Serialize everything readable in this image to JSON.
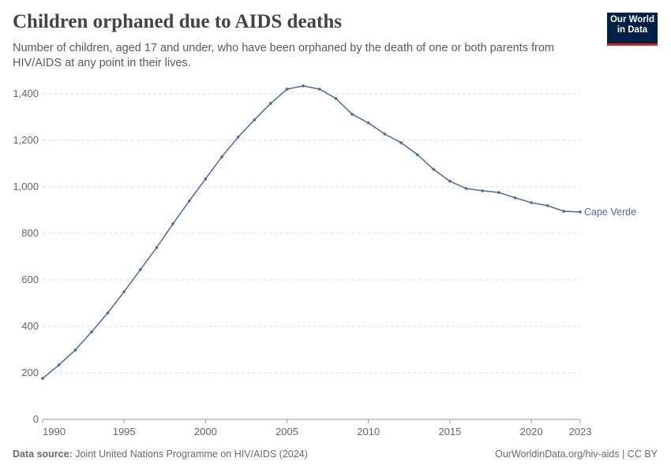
{
  "header": {
    "title": "Children orphaned due to AIDS deaths",
    "subtitle": "Number of children, aged 17 and under, who have been orphaned by the death of one or both parents from HIV/AIDS at any point in their lives.",
    "logo_line1": "Our World",
    "logo_line2": "in Data"
  },
  "footer": {
    "source_label": "Data source:",
    "source": "Joint United Nations Programme on HIV/AIDS (2024)",
    "url": "OurWorldinData.org/hiv-aids | CC BY"
  },
  "chart_data": {
    "type": "line",
    "title": "Children orphaned due to AIDS deaths",
    "xlabel": "",
    "ylabel": "",
    "xlim": [
      1990,
      2023
    ],
    "ylim": [
      0,
      1400
    ],
    "x_ticks": [
      1990,
      1995,
      2000,
      2005,
      2010,
      2015,
      2020,
      2023
    ],
    "y_ticks": [
      0,
      200,
      400,
      600,
      800,
      1000,
      1200,
      1400
    ],
    "y_tick_labels": [
      "0",
      "200",
      "400",
      "600",
      "800",
      "1,000",
      "1,200",
      "1,400"
    ],
    "grid": "horizontal dashed",
    "series": [
      {
        "name": "Cape Verde",
        "color": "#4c6a9c",
        "x": [
          1990,
          1991,
          1992,
          1993,
          1994,
          1995,
          1996,
          1997,
          1998,
          1999,
          2000,
          2001,
          2002,
          2003,
          2004,
          2005,
          2006,
          2007,
          2008,
          2009,
          2010,
          2011,
          2012,
          2013,
          2014,
          2015,
          2016,
          2017,
          2018,
          2019,
          2020,
          2021,
          2022,
          2023
        ],
        "values": [
          176,
          234,
          298,
          376,
          458,
          549,
          644,
          739,
          841,
          939,
          1034,
          1129,
          1214,
          1288,
          1359,
          1420,
          1434,
          1420,
          1380,
          1312,
          1275,
          1227,
          1190,
          1139,
          1075,
          1024,
          993,
          983,
          976,
          953,
          932,
          919,
          895,
          892
        ]
      }
    ]
  }
}
